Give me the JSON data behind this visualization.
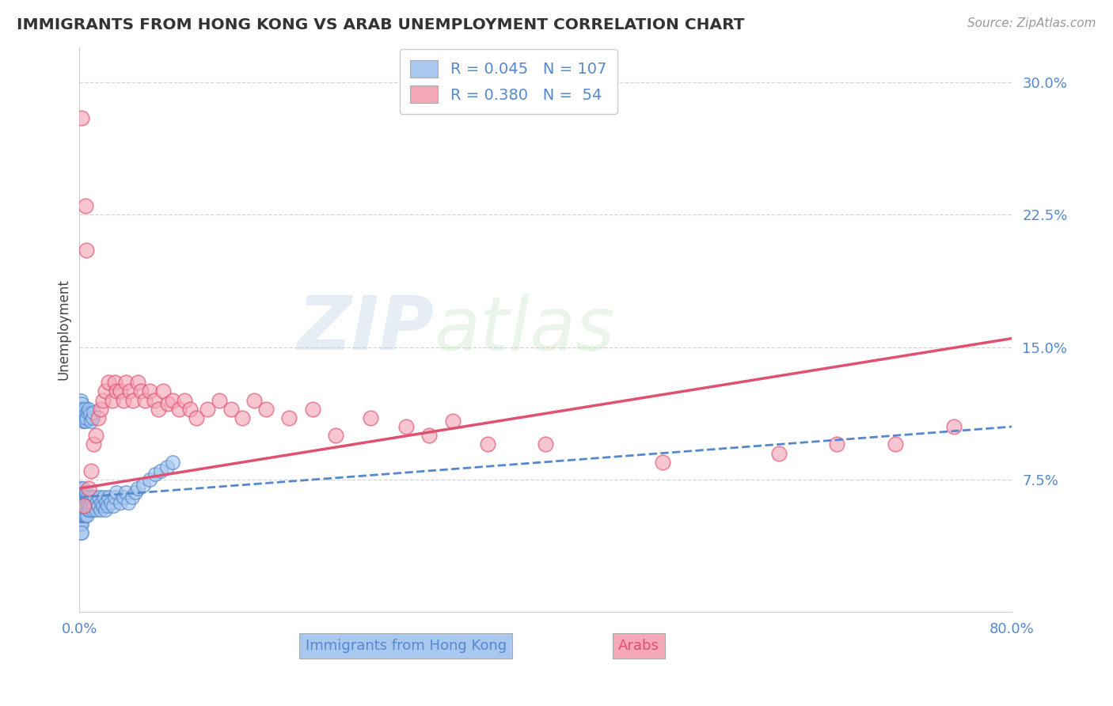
{
  "title": "IMMIGRANTS FROM HONG KONG VS ARAB UNEMPLOYMENT CORRELATION CHART",
  "source": "Source: ZipAtlas.com",
  "ylabel": "Unemployment",
  "hk_color": "#a8c8f0",
  "arab_color": "#f4a8b8",
  "hk_line_color": "#5588cc",
  "arab_line_color": "#e05070",
  "watermark_zip": "ZIP",
  "watermark_atlas": "atlas",
  "xlim": [
    0.0,
    0.8
  ],
  "ylim": [
    0.0,
    0.32
  ],
  "grid_color": "#c8c8c8",
  "background_color": "#ffffff",
  "hk_R": 0.045,
  "hk_N": 107,
  "arab_R": 0.38,
  "arab_N": 54,
  "ytick_vals": [
    0.075,
    0.15,
    0.225,
    0.3
  ],
  "ytick_labels": [
    "7.5%",
    "15.0%",
    "22.5%",
    "30.0%"
  ],
  "xtick_vals": [
    0.0,
    0.8
  ],
  "xtick_labels": [
    "0.0%",
    "80.0%"
  ],
  "hk_scatter_x": [
    0.0005,
    0.0005,
    0.0005,
    0.0005,
    0.001,
    0.001,
    0.001,
    0.001,
    0.001,
    0.001,
    0.0015,
    0.0015,
    0.0015,
    0.0015,
    0.0015,
    0.002,
    0.002,
    0.002,
    0.002,
    0.0025,
    0.0025,
    0.0025,
    0.003,
    0.003,
    0.003,
    0.0035,
    0.0035,
    0.004,
    0.004,
    0.004,
    0.0045,
    0.0045,
    0.005,
    0.005,
    0.0055,
    0.0055,
    0.006,
    0.006,
    0.0065,
    0.0065,
    0.007,
    0.007,
    0.0075,
    0.008,
    0.0085,
    0.009,
    0.0095,
    0.01,
    0.011,
    0.0115,
    0.012,
    0.013,
    0.014,
    0.015,
    0.016,
    0.017,
    0.018,
    0.019,
    0.02,
    0.021,
    0.022,
    0.023,
    0.024,
    0.025,
    0.027,
    0.029,
    0.03,
    0.032,
    0.035,
    0.038,
    0.04,
    0.042,
    0.045,
    0.048,
    0.05,
    0.055,
    0.06,
    0.065,
    0.07,
    0.075,
    0.08,
    0.002,
    0.0025,
    0.003,
    0.0035,
    0.004,
    0.0045,
    0.005,
    0.0055,
    0.006,
    0.001,
    0.0015,
    0.002,
    0.0025,
    0.003,
    0.0035,
    0.004,
    0.0045,
    0.005,
    0.0055,
    0.006,
    0.007,
    0.008,
    0.009,
    0.01,
    0.011,
    0.012
  ],
  "hk_scatter_y": [
    0.055,
    0.06,
    0.065,
    0.05,
    0.055,
    0.06,
    0.065,
    0.05,
    0.045,
    0.07,
    0.055,
    0.06,
    0.065,
    0.05,
    0.045,
    0.058,
    0.062,
    0.055,
    0.068,
    0.06,
    0.055,
    0.065,
    0.058,
    0.062,
    0.07,
    0.06,
    0.055,
    0.065,
    0.058,
    0.062,
    0.06,
    0.055,
    0.065,
    0.058,
    0.06,
    0.055,
    0.062,
    0.068,
    0.06,
    0.055,
    0.062,
    0.058,
    0.065,
    0.06,
    0.058,
    0.062,
    0.06,
    0.065,
    0.058,
    0.062,
    0.06,
    0.065,
    0.058,
    0.062,
    0.06,
    0.065,
    0.058,
    0.062,
    0.06,
    0.065,
    0.058,
    0.062,
    0.06,
    0.065,
    0.062,
    0.06,
    0.065,
    0.068,
    0.062,
    0.065,
    0.068,
    0.062,
    0.065,
    0.068,
    0.07,
    0.072,
    0.075,
    0.078,
    0.08,
    0.082,
    0.085,
    0.11,
    0.115,
    0.112,
    0.108,
    0.113,
    0.116,
    0.111,
    0.114,
    0.109,
    0.12,
    0.118,
    0.115,
    0.112,
    0.108,
    0.11,
    0.113,
    0.115,
    0.112,
    0.108,
    0.11,
    0.113,
    0.115,
    0.112,
    0.108,
    0.11,
    0.113
  ],
  "arab_scatter_x": [
    0.002,
    0.005,
    0.006,
    0.008,
    0.01,
    0.012,
    0.014,
    0.016,
    0.018,
    0.02,
    0.022,
    0.025,
    0.028,
    0.03,
    0.032,
    0.035,
    0.038,
    0.04,
    0.043,
    0.046,
    0.05,
    0.053,
    0.056,
    0.06,
    0.064,
    0.068,
    0.072,
    0.076,
    0.08,
    0.085,
    0.09,
    0.095,
    0.1,
    0.11,
    0.12,
    0.13,
    0.14,
    0.15,
    0.16,
    0.18,
    0.2,
    0.22,
    0.25,
    0.28,
    0.3,
    0.32,
    0.35,
    0.4,
    0.5,
    0.6,
    0.65,
    0.7,
    0.75,
    0.004
  ],
  "arab_scatter_y": [
    0.28,
    0.23,
    0.205,
    0.07,
    0.08,
    0.095,
    0.1,
    0.11,
    0.115,
    0.12,
    0.125,
    0.13,
    0.12,
    0.13,
    0.125,
    0.125,
    0.12,
    0.13,
    0.125,
    0.12,
    0.13,
    0.125,
    0.12,
    0.125,
    0.12,
    0.115,
    0.125,
    0.118,
    0.12,
    0.115,
    0.12,
    0.115,
    0.11,
    0.115,
    0.12,
    0.115,
    0.11,
    0.12,
    0.115,
    0.11,
    0.115,
    0.1,
    0.11,
    0.105,
    0.1,
    0.108,
    0.095,
    0.095,
    0.085,
    0.09,
    0.095,
    0.095,
    0.105,
    0.06
  ]
}
